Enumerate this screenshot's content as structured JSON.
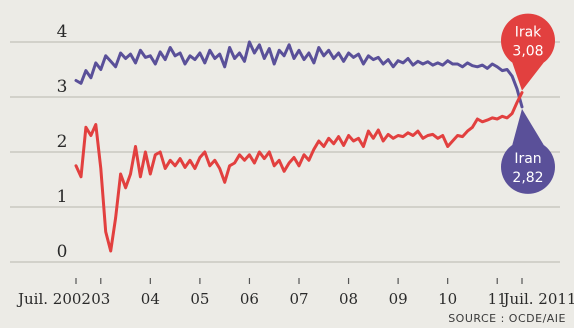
{
  "colors": {
    "background": "#ecebe6",
    "iraq": "#e2403f",
    "iran": "#5a5099",
    "grid": "#b9b7ad",
    "text": "#2a2a2a"
  },
  "source": "SOURCE : OCDE/AIE",
  "chart_data": {
    "type": "line",
    "title": "",
    "xlabel": "",
    "ylabel": "",
    "x_unit": "year",
    "xlim": [
      2002.5,
      2011.5
    ],
    "ylim": [
      0,
      4
    ],
    "yticks": [
      "0",
      "1",
      "2",
      "3",
      "4"
    ],
    "xticks": [
      {
        "label": "Juil. 2002",
        "x": 2002.5
      },
      {
        "label": "03",
        "x": 2003.0
      },
      {
        "label": "04",
        "x": 2004.0
      },
      {
        "label": "05",
        "x": 2005.0
      },
      {
        "label": "06",
        "x": 2006.0
      },
      {
        "label": "07",
        "x": 2007.0
      },
      {
        "label": "08",
        "x": 2008.0
      },
      {
        "label": "09",
        "x": 2009.0
      },
      {
        "label": "10",
        "x": 2010.0
      },
      {
        "label": "11",
        "x": 2011.0
      },
      {
        "label": "Juil. 2011",
        "x": 2011.5
      }
    ],
    "grid": true,
    "series": [
      {
        "name": "Iran",
        "label_value": "2,82",
        "x": [
          2002.5,
          2002.6,
          2002.7,
          2002.8,
          2002.9,
          2003.0,
          2003.1,
          2003.2,
          2003.3,
          2003.4,
          2003.5,
          2003.6,
          2003.7,
          2003.8,
          2003.9,
          2004.0,
          2004.1,
          2004.2,
          2004.3,
          2004.4,
          2004.5,
          2004.6,
          2004.7,
          2004.8,
          2004.9,
          2005.0,
          2005.1,
          2005.2,
          2005.3,
          2005.4,
          2005.5,
          2005.6,
          2005.7,
          2005.8,
          2005.9,
          2006.0,
          2006.1,
          2006.2,
          2006.3,
          2006.4,
          2006.5,
          2006.6,
          2006.7,
          2006.8,
          2006.9,
          2007.0,
          2007.1,
          2007.2,
          2007.3,
          2007.4,
          2007.5,
          2007.6,
          2007.7,
          2007.8,
          2007.9,
          2008.0,
          2008.1,
          2008.2,
          2008.3,
          2008.4,
          2008.5,
          2008.6,
          2008.7,
          2008.8,
          2008.9,
          2009.0,
          2009.1,
          2009.2,
          2009.3,
          2009.4,
          2009.5,
          2009.6,
          2009.7,
          2009.8,
          2009.9,
          2010.0,
          2010.1,
          2010.2,
          2010.3,
          2010.4,
          2010.5,
          2010.6,
          2010.7,
          2010.8,
          2010.9,
          2011.0,
          2011.1,
          2011.2,
          2011.3,
          2011.4,
          2011.5
        ],
        "values": [
          3.3,
          3.25,
          3.48,
          3.35,
          3.62,
          3.5,
          3.75,
          3.65,
          3.55,
          3.8,
          3.7,
          3.78,
          3.62,
          3.85,
          3.72,
          3.75,
          3.6,
          3.82,
          3.68,
          3.9,
          3.75,
          3.8,
          3.6,
          3.75,
          3.68,
          3.8,
          3.62,
          3.85,
          3.7,
          3.78,
          3.55,
          3.9,
          3.7,
          3.8,
          3.65,
          4.0,
          3.8,
          3.95,
          3.7,
          3.88,
          3.6,
          3.85,
          3.75,
          3.95,
          3.7,
          3.85,
          3.68,
          3.8,
          3.62,
          3.9,
          3.75,
          3.85,
          3.7,
          3.8,
          3.65,
          3.8,
          3.72,
          3.78,
          3.6,
          3.75,
          3.68,
          3.72,
          3.6,
          3.68,
          3.55,
          3.66,
          3.62,
          3.7,
          3.58,
          3.65,
          3.6,
          3.64,
          3.58,
          3.62,
          3.58,
          3.66,
          3.6,
          3.6,
          3.55,
          3.62,
          3.57,
          3.55,
          3.58,
          3.52,
          3.6,
          3.55,
          3.48,
          3.5,
          3.38,
          3.15,
          2.82
        ]
      },
      {
        "name": "Irak",
        "label_value": "3,08",
        "x": [
          2002.5,
          2002.6,
          2002.7,
          2002.8,
          2002.9,
          2003.0,
          2003.1,
          2003.2,
          2003.3,
          2003.4,
          2003.5,
          2003.6,
          2003.7,
          2003.8,
          2003.9,
          2004.0,
          2004.1,
          2004.2,
          2004.3,
          2004.4,
          2004.5,
          2004.6,
          2004.7,
          2004.8,
          2004.9,
          2005.0,
          2005.1,
          2005.2,
          2005.3,
          2005.4,
          2005.5,
          2005.6,
          2005.7,
          2005.8,
          2005.9,
          2006.0,
          2006.1,
          2006.2,
          2006.3,
          2006.4,
          2006.5,
          2006.6,
          2006.7,
          2006.8,
          2006.9,
          2007.0,
          2007.1,
          2007.2,
          2007.3,
          2007.4,
          2007.5,
          2007.6,
          2007.7,
          2007.8,
          2007.9,
          2008.0,
          2008.1,
          2008.2,
          2008.3,
          2008.4,
          2008.5,
          2008.6,
          2008.7,
          2008.8,
          2008.9,
          2009.0,
          2009.1,
          2009.2,
          2009.3,
          2009.4,
          2009.5,
          2009.6,
          2009.7,
          2009.8,
          2009.9,
          2010.0,
          2010.1,
          2010.2,
          2010.3,
          2010.4,
          2010.5,
          2010.6,
          2010.7,
          2010.8,
          2010.9,
          2011.0,
          2011.1,
          2011.2,
          2011.3,
          2011.4,
          2011.5
        ],
        "values": [
          1.75,
          1.55,
          2.45,
          2.3,
          2.5,
          1.7,
          0.55,
          0.2,
          0.8,
          1.6,
          1.35,
          1.6,
          2.1,
          1.55,
          2.0,
          1.6,
          1.95,
          2.0,
          1.7,
          1.85,
          1.75,
          1.88,
          1.72,
          1.85,
          1.7,
          1.9,
          2.0,
          1.75,
          1.85,
          1.7,
          1.45,
          1.75,
          1.8,
          1.95,
          1.85,
          1.95,
          1.8,
          2.0,
          1.88,
          2.0,
          1.75,
          1.85,
          1.65,
          1.8,
          1.9,
          1.75,
          1.95,
          1.85,
          2.05,
          2.2,
          2.1,
          2.25,
          2.15,
          2.28,
          2.12,
          2.3,
          2.2,
          2.25,
          2.1,
          2.38,
          2.25,
          2.4,
          2.2,
          2.32,
          2.25,
          2.3,
          2.28,
          2.35,
          2.3,
          2.38,
          2.25,
          2.3,
          2.32,
          2.25,
          2.3,
          2.1,
          2.2,
          2.3,
          2.28,
          2.38,
          2.45,
          2.6,
          2.55,
          2.58,
          2.62,
          2.6,
          2.65,
          2.62,
          2.7,
          2.9,
          3.08
        ]
      }
    ]
  }
}
